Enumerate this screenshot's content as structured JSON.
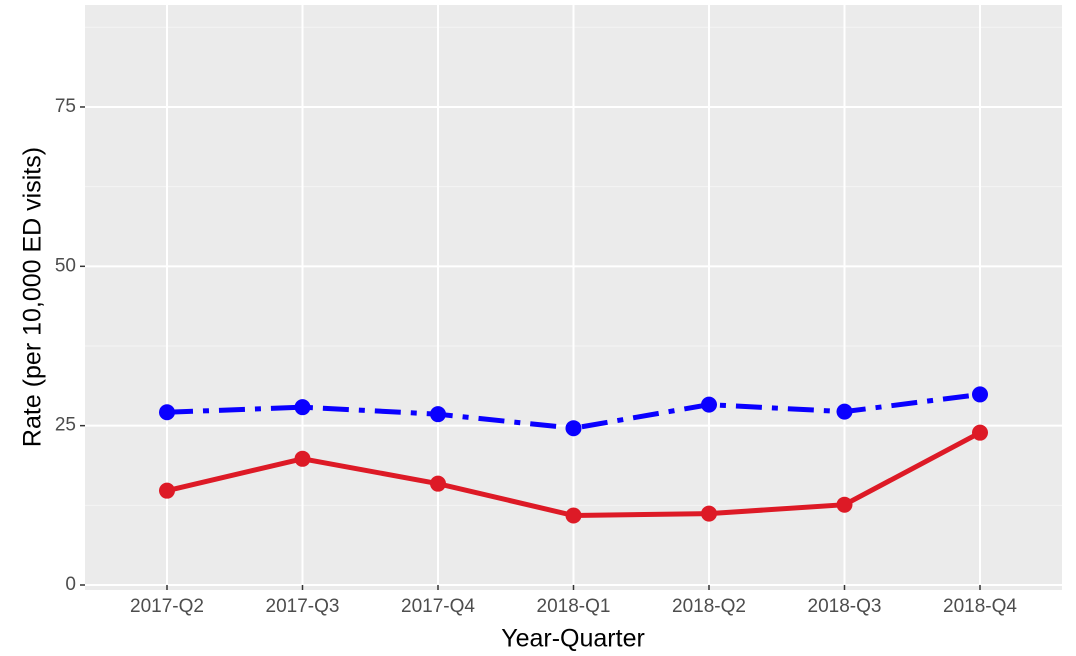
{
  "chart_data": {
    "type": "line",
    "xlabel": "Year-Quarter",
    "ylabel": "Rate (per 10,000 ED visits)",
    "categories": [
      "2017-Q2",
      "2017-Q3",
      "2017-Q4",
      "2018-Q1",
      "2018-Q2",
      "2018-Q3",
      "2018-Q4"
    ],
    "series": [
      {
        "color": "#0a00ff",
        "linestyle": "dashdot",
        "values": [
          27.1,
          27.9,
          26.8,
          24.6,
          28.3,
          27.2,
          29.9
        ]
      },
      {
        "color": "#dd1a26",
        "linestyle": "solid",
        "values": [
          14.8,
          19.8,
          15.9,
          10.9,
          11.2,
          12.6,
          23.9
        ]
      }
    ],
    "ylim": [
      0,
      91
    ],
    "yticks": [
      0,
      25,
      50,
      75
    ],
    "grid": true
  }
}
